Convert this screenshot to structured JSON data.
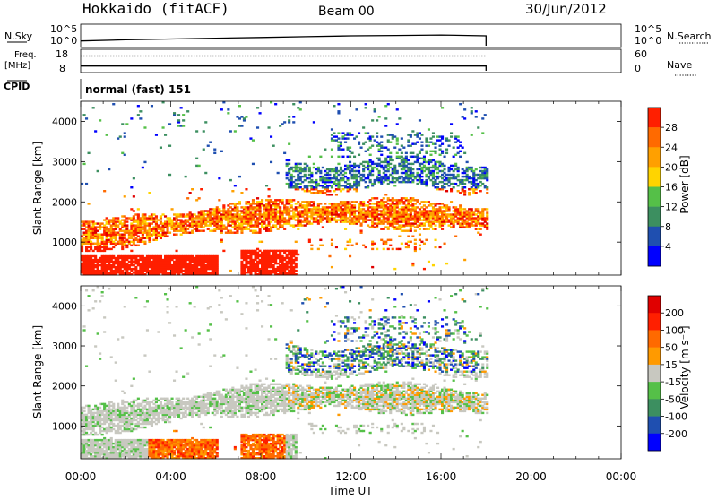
{
  "header": {
    "station": "Hokkaido (fitACF)",
    "beam": "Beam 00",
    "date": "30/Jun/2012"
  },
  "colors": {
    "power_scale": [
      "#0000ff",
      "#1f4fb0",
      "#3c8f60",
      "#55c048",
      "#ffd400",
      "#ffa000",
      "#ff6a00",
      "#ff1f00",
      "#e00000"
    ],
    "velocity_scale": [
      "#0000ff",
      "#1f4fb0",
      "#3c8f60",
      "#55c048",
      "#c8c8c0",
      "#ff9a00",
      "#ff6a00",
      "#ff1f00",
      "#e00000"
    ]
  },
  "chart_data": [
    {
      "type": "line",
      "name": "nsky-nsearch",
      "ylabel_left": "N.Sky",
      "ylabel_right": "N.Search",
      "ytick_left": [
        "10^5",
        "10^0"
      ],
      "ytick_right": [
        "10^5",
        "10^0"
      ],
      "x": [
        "00:00",
        "02:00",
        "04:00",
        "06:00",
        "08:00",
        "10:00",
        "12:00",
        "14:00",
        "16:00",
        "18:00"
      ],
      "values_log10": [
        1.2,
        1.5,
        1.7,
        1.9,
        2.1,
        2.3,
        2.5,
        2.6,
        2.7,
        2.5
      ]
    },
    {
      "type": "line",
      "name": "freq-nave",
      "ylabel_left": "Freq.",
      "ylabel_left_unit": "[MHz]",
      "ylabel_right": "Nave",
      "ytick_left": [
        "18",
        "8"
      ],
      "ytick_right": [
        "60",
        "0"
      ],
      "freq_mhz": 10.4,
      "nave": 45
    },
    {
      "type": "label",
      "name": "cpid",
      "label": "CPID",
      "value": "normal (fast) 151"
    },
    {
      "type": "heatmap",
      "name": "power",
      "ylabel": "Slant Range [km]",
      "yticks": [
        1000,
        2000,
        3000,
        4000
      ],
      "ylim": [
        180,
        4500
      ],
      "xlim_hours": [
        0,
        24
      ],
      "data_end_hours": 18,
      "colorbar_label": "Power [dB]",
      "colorbar_ticks": [
        "28",
        "24",
        "20",
        "16",
        "12",
        "8",
        "4"
      ]
    },
    {
      "type": "heatmap",
      "name": "velocity",
      "ylabel": "Slant Range [km]",
      "yticks": [
        1000,
        2000,
        3000,
        4000
      ],
      "ylim": [
        180,
        4500
      ],
      "xlim_hours": [
        0,
        24
      ],
      "data_end_hours": 18,
      "colorbar_label": "Velocity [m s⁻¹]",
      "colorbar_ticks": [
        "200",
        "100",
        "50",
        "15",
        "-15",
        "-50",
        "-100",
        "-200"
      ]
    }
  ],
  "xaxis": {
    "ticks": [
      "00:00",
      "04:00",
      "08:00",
      "12:00",
      "16:00",
      "20:00",
      "00:00"
    ],
    "label": "Time UT"
  }
}
